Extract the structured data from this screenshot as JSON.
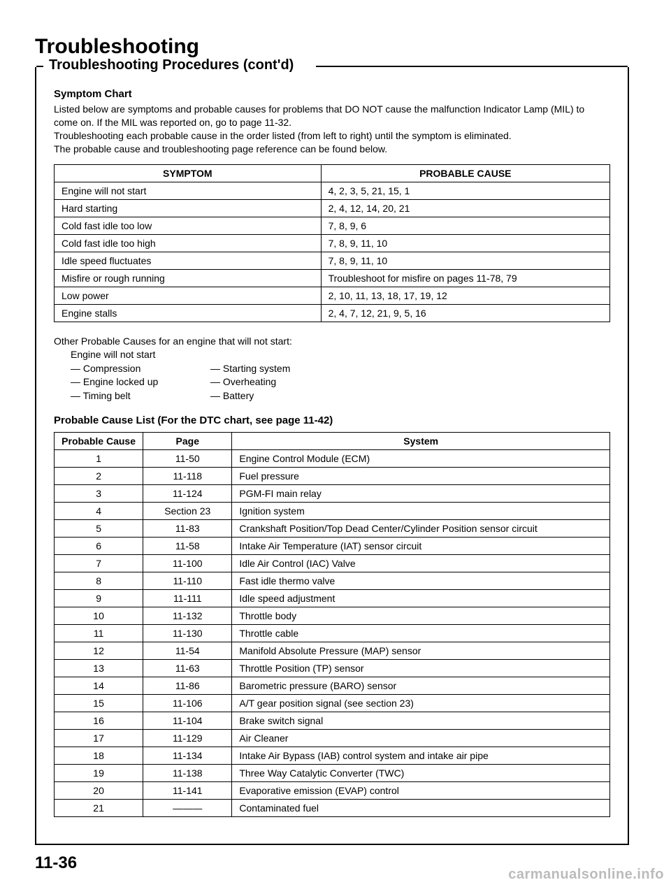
{
  "title": "Troubleshooting",
  "section_title": "Troubleshooting Procedures (cont'd)",
  "symptom_chart": {
    "heading": "Symptom Chart",
    "intro": "Listed below are symptoms and probable causes for problems that DO NOT cause the malfunction Indicator Lamp (MIL) to come on. If the MIL was reported on, go to page 11-32.\nTroubleshooting each probable cause in the order listed (from left to right) until the symptom is eliminated.\nThe probable cause and troubleshooting page reference can be found below.",
    "headers": [
      "SYMPTOM",
      "PROBABLE CAUSE"
    ],
    "rows": [
      [
        "Engine will not start",
        "4, 2, 3, 5, 21, 15, 1"
      ],
      [
        "Hard starting",
        "2, 4, 12, 14, 20, 21"
      ],
      [
        "Cold fast idle too low",
        "7, 8, 9, 6"
      ],
      [
        "Cold fast idle too high",
        "7, 8, 9, 11, 10"
      ],
      [
        "Idle speed fluctuates",
        "7, 8, 9, 11, 10"
      ],
      [
        "Misfire or rough running",
        "Troubleshoot for misfire on pages 11-78, 79"
      ],
      [
        "Low power",
        "2, 10, 11, 13, 18, 17, 19, 12"
      ],
      [
        "Engine stalls",
        "2, 4, 7, 12, 21, 9, 5, 16"
      ]
    ]
  },
  "other_causes": {
    "heading": "Other Probable Causes for an engine that will not start:",
    "subline": "Engine will not start",
    "col1": [
      "— Compression",
      "— Engine locked up",
      "— Timing belt"
    ],
    "col2": [
      "— Starting system",
      "— Overheating",
      "— Battery"
    ]
  },
  "cause_list": {
    "heading": "Probable Cause List (For the DTC chart, see page 11-42)",
    "headers": [
      "Probable Cause",
      "Page",
      "System"
    ],
    "rows": [
      [
        "1",
        "11-50",
        "Engine Control Module (ECM)"
      ],
      [
        "2",
        "11-118",
        "Fuel pressure"
      ],
      [
        "3",
        "11-124",
        "PGM-FI main relay"
      ],
      [
        "4",
        "Section 23",
        "Ignition system"
      ],
      [
        "5",
        "11-83",
        "Crankshaft Position/Top Dead Center/Cylinder Position sensor circuit"
      ],
      [
        "6",
        "11-58",
        "Intake Air Temperature (IAT) sensor circuit"
      ],
      [
        "7",
        "11-100",
        "Idle Air Control (IAC) Valve"
      ],
      [
        "8",
        "11-110",
        "Fast idle thermo valve"
      ],
      [
        "9",
        "11-111",
        "Idle speed adjustment"
      ],
      [
        "10",
        "11-132",
        "Throttle body"
      ],
      [
        "11",
        "11-130",
        "Throttle cable"
      ],
      [
        "12",
        "11-54",
        "Manifold Absolute Pressure (MAP) sensor"
      ],
      [
        "13",
        "11-63",
        "Throttle Position (TP) sensor"
      ],
      [
        "14",
        "11-86",
        "Barometric pressure (BARO) sensor"
      ],
      [
        "15",
        "11-106",
        "A/T gear position signal (see section 23)"
      ],
      [
        "16",
        "11-104",
        "Brake switch signal"
      ],
      [
        "17",
        "11-129",
        "Air Cleaner"
      ],
      [
        "18",
        "11-134",
        "Intake Air Bypass (IAB) control system and intake air pipe"
      ],
      [
        "19",
        "11-138",
        "Three Way Catalytic Converter (TWC)"
      ],
      [
        "20",
        "11-141",
        "Evaporative emission (EVAP) control"
      ],
      [
        "21",
        "———",
        "Contaminated fuel"
      ]
    ]
  },
  "page_number": "11-36",
  "watermark": "carmanualsonline.info"
}
